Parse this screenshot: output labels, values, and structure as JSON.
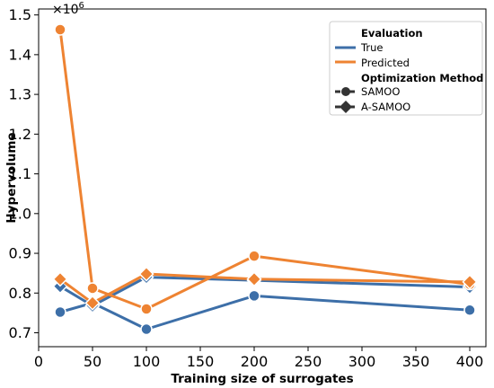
{
  "chart_data": {
    "type": "line",
    "x": [
      20,
      50,
      100,
      200,
      400
    ],
    "xlabel": "Training size of surrogates",
    "ylabel": "Hypervolume",
    "y_offset_label": "×10^6",
    "xlim": [
      0,
      415
    ],
    "ylim": [
      0.665,
      1.515
    ],
    "xticks": [
      "0",
      "50",
      "100",
      "150",
      "200",
      "250",
      "300",
      "350",
      "400"
    ],
    "yticks": [
      "0.7",
      "0.8",
      "0.9",
      "1.0",
      "1.1",
      "1.2",
      "1.3",
      "1.4",
      "1.5"
    ],
    "xtick_values": [
      0,
      50,
      100,
      150,
      200,
      250,
      300,
      350,
      400
    ],
    "ytick_values": [
      0.7,
      0.8,
      0.9,
      1.0,
      1.1,
      1.2,
      1.3,
      1.4,
      1.5
    ],
    "grid": false,
    "legend_position": "top-right",
    "series": [
      {
        "name": "True",
        "method": "SAMOO",
        "marker": "circle",
        "color": "#3d6fa8",
        "values": [
          0.752,
          0.775,
          0.709,
          0.793,
          0.757
        ]
      },
      {
        "name": "True",
        "method": "A-SAMOO",
        "marker": "diamond",
        "color": "#3d6fa8",
        "values": [
          0.817,
          0.768,
          0.84,
          0.832,
          0.815
        ]
      },
      {
        "name": "Predicted",
        "method": "SAMOO",
        "marker": "circle",
        "color": "#ee8332",
        "values": [
          1.463,
          0.812,
          0.76,
          0.893,
          0.822
        ]
      },
      {
        "name": "Predicted",
        "method": "A-SAMOO",
        "marker": "diamond",
        "color": "#ee8332",
        "values": [
          0.835,
          0.775,
          0.848,
          0.835,
          0.828
        ]
      }
    ]
  },
  "legend": {
    "evaluation_header": "Evaluation",
    "true_label": "True",
    "predicted_label": "Predicted",
    "method_header": "Optimization Method",
    "samoo_label": "SAMOO",
    "asamoo_label": "A-SAMOO",
    "neutral_color": "#333333"
  }
}
